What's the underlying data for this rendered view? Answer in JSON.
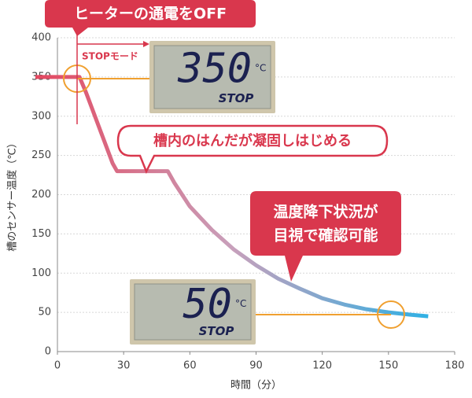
{
  "chart_data": {
    "type": "line",
    "x_label": "時間（分）",
    "y_label": "槽のセンサー温度（℃）",
    "x": [
      -10,
      10,
      13,
      17,
      21,
      25,
      27,
      50,
      53,
      60,
      70,
      80,
      90,
      100,
      110,
      120,
      130,
      140,
      150,
      160,
      168
    ],
    "series": [
      {
        "colors": [
          "#e4475f",
          "#c8a0bb",
          "#2fb0e4"
        ],
        "values": [
          350,
          350,
          330,
          300,
          270,
          240,
          230,
          230,
          215,
          185,
          155,
          130,
          110,
          93,
          80,
          68,
          60,
          54,
          50,
          47,
          45
        ]
      }
    ],
    "xlim": [
      0,
      180
    ],
    "xticks": [
      0,
      30,
      60,
      90,
      120,
      150,
      180
    ],
    "ylim": [
      0,
      400
    ],
    "yticks": [
      0,
      50,
      100,
      150,
      200,
      250,
      300,
      350,
      400
    ],
    "grid": true,
    "annotations": {
      "heater_off": "ヒーターの通電をOFF",
      "stop_mode": "STOPモード",
      "solidify": "槽内のはんだが凝固しはじめる",
      "visible": [
        "温度降下状況が",
        "目視で確認可能"
      ]
    },
    "displays": [
      {
        "reading": "350",
        "unit": "°C",
        "mode": "STOP"
      },
      {
        "reading": "50",
        "unit": "°C",
        "mode": "STOP"
      }
    ]
  }
}
